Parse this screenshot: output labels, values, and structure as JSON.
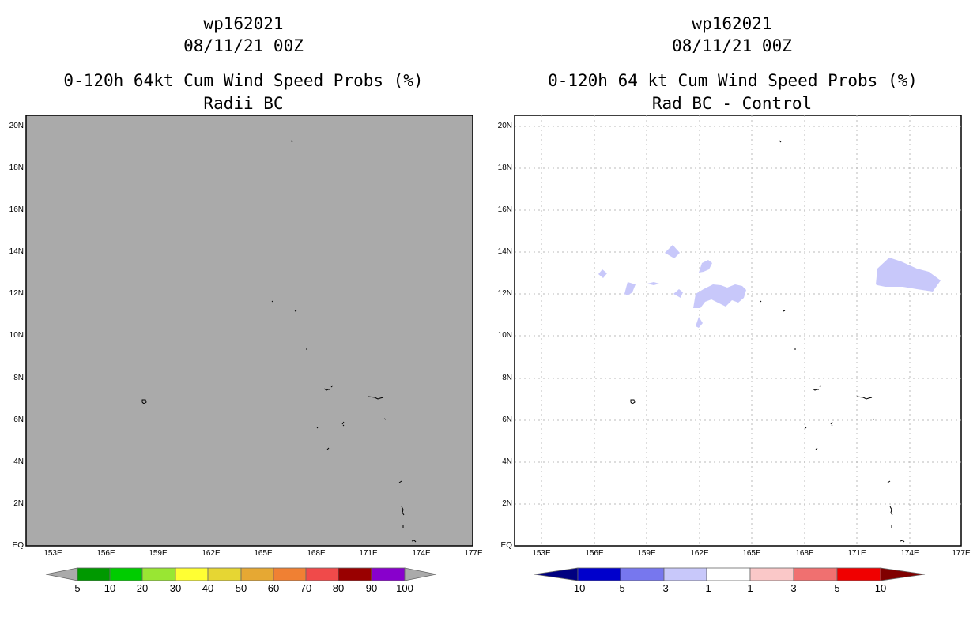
{
  "left_panel": {
    "storm_id": "wp162021",
    "datetime": "08/11/21 00Z",
    "title": "0-120h 64kt Cum Wind Speed Probs (%)",
    "subtitle": "Radii BC",
    "colorbar_labels": [
      "5",
      "10",
      "20",
      "30",
      "40",
      "50",
      "60",
      "70",
      "80",
      "90",
      "100"
    ],
    "colorbar_colors": [
      "#009900",
      "#00cc00",
      "#99e633",
      "#ffff33",
      "#e6d633",
      "#e6a833",
      "#f08033",
      "#f04a4a",
      "#990000",
      "#8800cc"
    ],
    "field_color": "#aaaaaa"
  },
  "right_panel": {
    "storm_id": "wp162021",
    "datetime": "08/11/21 00Z",
    "title": "0-120h 64 kt Cum Wind Speed Probs (%)",
    "subtitle": "Rad BC - Control",
    "colorbar_labels": [
      "-10",
      "-5",
      "-3",
      "-1",
      "1",
      "3",
      "5",
      "10"
    ],
    "colorbar_colors": [
      "#0000cc",
      "#7777ee",
      "#c8c8fa",
      "#ffffff",
      "#fac8c8",
      "#f07070",
      "#f00000"
    ],
    "end_colors": [
      "#000080",
      "#800000"
    ],
    "anomaly_color": "#c8c8fa"
  },
  "lon_ticks": [
    "153E",
    "156E",
    "159E",
    "162E",
    "165E",
    "168E",
    "171E",
    "174E",
    "177E"
  ],
  "lat_ticks": [
    "20N",
    "18N",
    "16N",
    "14N",
    "12N",
    "10N",
    "8N",
    "6N",
    "4N",
    "2N",
    "EQ"
  ]
}
